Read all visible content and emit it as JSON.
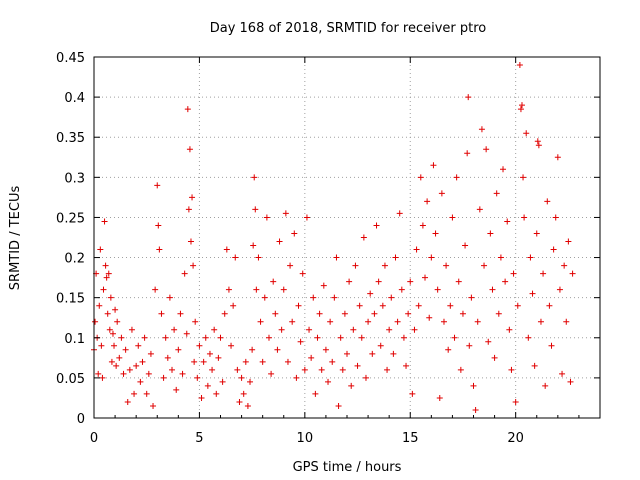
{
  "chart_data": {
    "type": "scatter",
    "title": "Day 168 of 2018, SRMTID for receiver ptro",
    "xlabel": "GPS time / hours",
    "ylabel": "SRMTID / TECUs",
    "xlim": [
      0,
      24
    ],
    "ylim": [
      0,
      0.45
    ],
    "xticks": [
      0,
      5,
      10,
      15,
      20
    ],
    "yticks": [
      0,
      0.05,
      0.1,
      0.15,
      0.2,
      0.25,
      0.3,
      0.35,
      0.4,
      0.45
    ],
    "xtick_labels": [
      "0",
      "5",
      "10",
      "15",
      "20"
    ],
    "ytick_labels": [
      "0",
      "0.05",
      "0.1",
      "0.15",
      "0.2",
      "0.25",
      "0.3",
      "0.35",
      "0.4",
      "0.45"
    ],
    "grid": true,
    "marker_color": "#e00000",
    "series": [
      {
        "name": "SRMTID",
        "points": [
          [
            0.0,
            0.085
          ],
          [
            0.05,
            0.12
          ],
          [
            0.1,
            0.18
          ],
          [
            0.15,
            0.1
          ],
          [
            0.2,
            0.055
          ],
          [
            0.25,
            0.14
          ],
          [
            0.3,
            0.21
          ],
          [
            0.35,
            0.09
          ],
          [
            0.4,
            0.05
          ],
          [
            0.45,
            0.16
          ],
          [
            0.5,
            0.245
          ],
          [
            0.55,
            0.19
          ],
          [
            0.6,
            0.175
          ],
          [
            0.65,
            0.13
          ],
          [
            0.7,
            0.18
          ],
          [
            0.75,
            0.11
          ],
          [
            0.8,
            0.15
          ],
          [
            0.85,
            0.07
          ],
          [
            0.9,
            0.105
          ],
          [
            0.95,
            0.09
          ],
          [
            1.0,
            0.135
          ],
          [
            1.05,
            0.065
          ],
          [
            1.1,
            0.12
          ],
          [
            1.2,
            0.075
          ],
          [
            1.3,
            0.1
          ],
          [
            1.4,
            0.055
          ],
          [
            1.5,
            0.085
          ],
          [
            1.6,
            0.02
          ],
          [
            1.7,
            0.06
          ],
          [
            1.8,
            0.11
          ],
          [
            1.9,
            0.03
          ],
          [
            2.0,
            0.065
          ],
          [
            2.1,
            0.09
          ],
          [
            2.2,
            0.045
          ],
          [
            2.3,
            0.07
          ],
          [
            2.4,
            0.1
          ],
          [
            2.5,
            0.03
          ],
          [
            2.6,
            0.055
          ],
          [
            2.7,
            0.08
          ],
          [
            2.8,
            0.015
          ],
          [
            2.9,
            0.16
          ],
          [
            3.0,
            0.29
          ],
          [
            3.05,
            0.24
          ],
          [
            3.1,
            0.21
          ],
          [
            3.2,
            0.13
          ],
          [
            3.3,
            0.05
          ],
          [
            3.4,
            0.1
          ],
          [
            3.5,
            0.075
          ],
          [
            3.6,
            0.15
          ],
          [
            3.7,
            0.06
          ],
          [
            3.8,
            0.11
          ],
          [
            3.9,
            0.035
          ],
          [
            4.0,
            0.085
          ],
          [
            4.1,
            0.13
          ],
          [
            4.2,
            0.055
          ],
          [
            4.3,
            0.18
          ],
          [
            4.4,
            0.105
          ],
          [
            4.45,
            0.385
          ],
          [
            4.5,
            0.26
          ],
          [
            4.55,
            0.335
          ],
          [
            4.6,
            0.22
          ],
          [
            4.65,
            0.275
          ],
          [
            4.7,
            0.19
          ],
          [
            4.75,
            0.07
          ],
          [
            4.8,
            0.12
          ],
          [
            4.9,
            0.05
          ],
          [
            5.0,
            0.09
          ],
          [
            5.1,
            0.025
          ],
          [
            5.2,
            0.07
          ],
          [
            5.3,
            0.1
          ],
          [
            5.4,
            0.04
          ],
          [
            5.5,
            0.08
          ],
          [
            5.6,
            0.06
          ],
          [
            5.7,
            0.11
          ],
          [
            5.8,
            0.03
          ],
          [
            5.9,
            0.075
          ],
          [
            6.0,
            0.1
          ],
          [
            6.1,
            0.045
          ],
          [
            6.2,
            0.13
          ],
          [
            6.3,
            0.21
          ],
          [
            6.4,
            0.16
          ],
          [
            6.5,
            0.09
          ],
          [
            6.6,
            0.14
          ],
          [
            6.7,
            0.2
          ],
          [
            6.8,
            0.06
          ],
          [
            6.9,
            0.02
          ],
          [
            7.0,
            0.05
          ],
          [
            7.1,
            0.03
          ],
          [
            7.2,
            0.07
          ],
          [
            7.3,
            0.015
          ],
          [
            7.4,
            0.045
          ],
          [
            7.5,
            0.085
          ],
          [
            7.55,
            0.215
          ],
          [
            7.6,
            0.3
          ],
          [
            7.65,
            0.26
          ],
          [
            7.7,
            0.16
          ],
          [
            7.8,
            0.2
          ],
          [
            7.9,
            0.12
          ],
          [
            8.0,
            0.07
          ],
          [
            8.1,
            0.15
          ],
          [
            8.2,
            0.25
          ],
          [
            8.3,
            0.1
          ],
          [
            8.4,
            0.055
          ],
          [
            8.5,
            0.17
          ],
          [
            8.6,
            0.13
          ],
          [
            8.7,
            0.085
          ],
          [
            8.8,
            0.22
          ],
          [
            8.9,
            0.11
          ],
          [
            9.0,
            0.16
          ],
          [
            9.1,
            0.255
          ],
          [
            9.2,
            0.07
          ],
          [
            9.3,
            0.19
          ],
          [
            9.4,
            0.12
          ],
          [
            9.5,
            0.23
          ],
          [
            9.6,
            0.05
          ],
          [
            9.7,
            0.14
          ],
          [
            9.8,
            0.095
          ],
          [
            9.9,
            0.18
          ],
          [
            10.0,
            0.06
          ],
          [
            10.1,
            0.25
          ],
          [
            10.2,
            0.11
          ],
          [
            10.3,
            0.075
          ],
          [
            10.4,
            0.15
          ],
          [
            10.5,
            0.03
          ],
          [
            10.6,
            0.1
          ],
          [
            10.7,
            0.13
          ],
          [
            10.8,
            0.06
          ],
          [
            10.9,
            0.165
          ],
          [
            11.0,
            0.085
          ],
          [
            11.1,
            0.045
          ],
          [
            11.2,
            0.12
          ],
          [
            11.3,
            0.07
          ],
          [
            11.4,
            0.15
          ],
          [
            11.5,
            0.2
          ],
          [
            11.6,
            0.015
          ],
          [
            11.7,
            0.1
          ],
          [
            11.8,
            0.06
          ],
          [
            11.9,
            0.13
          ],
          [
            12.0,
            0.08
          ],
          [
            12.1,
            0.17
          ],
          [
            12.2,
            0.04
          ],
          [
            12.3,
            0.11
          ],
          [
            12.4,
            0.19
          ],
          [
            12.5,
            0.065
          ],
          [
            12.6,
            0.14
          ],
          [
            12.7,
            0.1
          ],
          [
            12.8,
            0.225
          ],
          [
            12.9,
            0.05
          ],
          [
            13.0,
            0.12
          ],
          [
            13.1,
            0.155
          ],
          [
            13.2,
            0.08
          ],
          [
            13.3,
            0.13
          ],
          [
            13.4,
            0.24
          ],
          [
            13.5,
            0.17
          ],
          [
            13.6,
            0.09
          ],
          [
            13.7,
            0.14
          ],
          [
            13.8,
            0.19
          ],
          [
            13.9,
            0.06
          ],
          [
            14.0,
            0.11
          ],
          [
            14.1,
            0.15
          ],
          [
            14.2,
            0.08
          ],
          [
            14.3,
            0.2
          ],
          [
            14.4,
            0.12
          ],
          [
            14.5,
            0.255
          ],
          [
            14.6,
            0.16
          ],
          [
            14.7,
            0.1
          ],
          [
            14.8,
            0.065
          ],
          [
            14.9,
            0.13
          ],
          [
            15.0,
            0.17
          ],
          [
            15.1,
            0.03
          ],
          [
            15.2,
            0.11
          ],
          [
            15.3,
            0.21
          ],
          [
            15.4,
            0.14
          ],
          [
            15.5,
            0.3
          ],
          [
            15.6,
            0.24
          ],
          [
            15.7,
            0.175
          ],
          [
            15.8,
            0.27
          ],
          [
            15.9,
            0.125
          ],
          [
            16.0,
            0.2
          ],
          [
            16.1,
            0.315
          ],
          [
            16.2,
            0.23
          ],
          [
            16.3,
            0.16
          ],
          [
            16.4,
            0.025
          ],
          [
            16.5,
            0.28
          ],
          [
            16.6,
            0.12
          ],
          [
            16.7,
            0.19
          ],
          [
            16.8,
            0.085
          ],
          [
            16.9,
            0.14
          ],
          [
            17.0,
            0.25
          ],
          [
            17.1,
            0.1
          ],
          [
            17.2,
            0.3
          ],
          [
            17.3,
            0.17
          ],
          [
            17.4,
            0.06
          ],
          [
            17.5,
            0.13
          ],
          [
            17.6,
            0.215
          ],
          [
            17.7,
            0.33
          ],
          [
            17.75,
            0.4
          ],
          [
            17.8,
            0.09
          ],
          [
            17.9,
            0.15
          ],
          [
            18.0,
            0.04
          ],
          [
            18.1,
            0.01
          ],
          [
            18.2,
            0.12
          ],
          [
            18.3,
            0.26
          ],
          [
            18.4,
            0.36
          ],
          [
            18.5,
            0.19
          ],
          [
            18.6,
            0.335
          ],
          [
            18.7,
            0.095
          ],
          [
            18.8,
            0.23
          ],
          [
            18.9,
            0.16
          ],
          [
            19.0,
            0.075
          ],
          [
            19.1,
            0.28
          ],
          [
            19.2,
            0.13
          ],
          [
            19.3,
            0.2
          ],
          [
            19.4,
            0.31
          ],
          [
            19.5,
            0.17
          ],
          [
            19.6,
            0.245
          ],
          [
            19.7,
            0.11
          ],
          [
            19.8,
            0.06
          ],
          [
            19.9,
            0.18
          ],
          [
            20.0,
            0.02
          ],
          [
            20.1,
            0.14
          ],
          [
            20.2,
            0.44
          ],
          [
            20.25,
            0.385
          ],
          [
            20.3,
            0.39
          ],
          [
            20.35,
            0.3
          ],
          [
            20.4,
            0.25
          ],
          [
            20.5,
            0.355
          ],
          [
            20.6,
            0.1
          ],
          [
            20.7,
            0.2
          ],
          [
            20.8,
            0.155
          ],
          [
            20.9,
            0.065
          ],
          [
            21.0,
            0.23
          ],
          [
            21.05,
            0.345
          ],
          [
            21.1,
            0.34
          ],
          [
            21.2,
            0.12
          ],
          [
            21.3,
            0.18
          ],
          [
            21.4,
            0.04
          ],
          [
            21.5,
            0.27
          ],
          [
            21.6,
            0.14
          ],
          [
            21.7,
            0.09
          ],
          [
            21.8,
            0.21
          ],
          [
            21.9,
            0.25
          ],
          [
            22.0,
            0.325
          ],
          [
            22.1,
            0.16
          ],
          [
            22.2,
            0.055
          ],
          [
            22.3,
            0.19
          ],
          [
            22.4,
            0.12
          ],
          [
            22.5,
            0.22
          ],
          [
            22.6,
            0.045
          ],
          [
            22.7,
            0.18
          ]
        ]
      }
    ]
  }
}
